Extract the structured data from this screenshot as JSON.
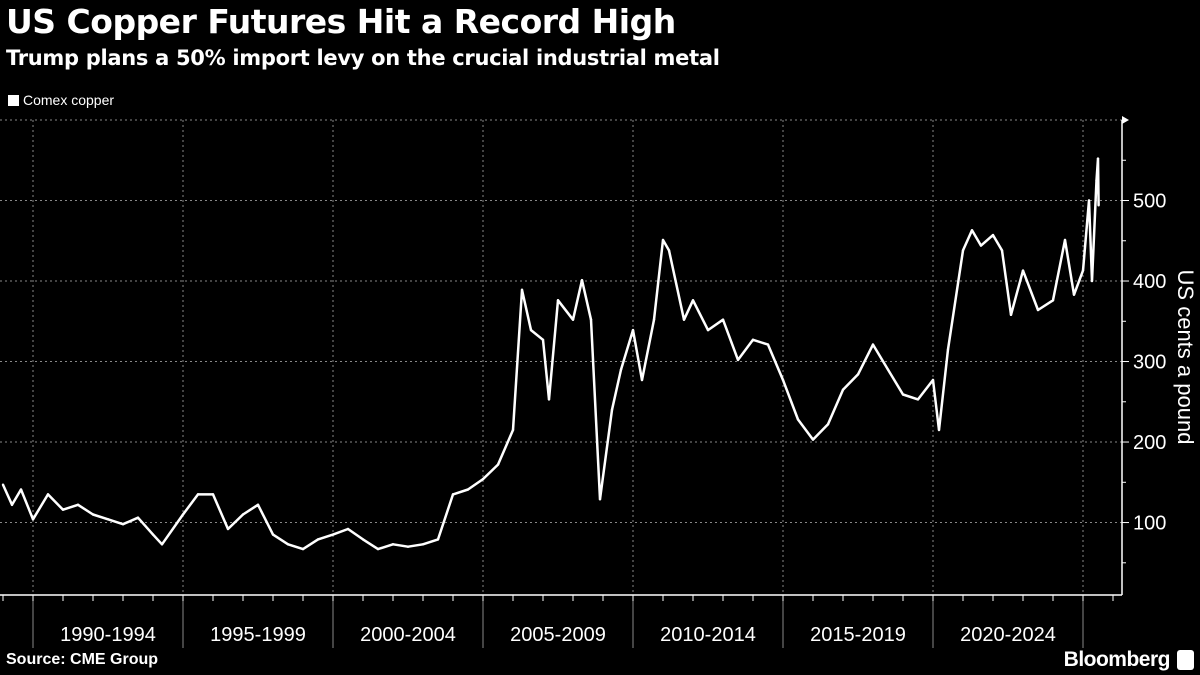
{
  "chart_data": {
    "type": "line",
    "title": "US Copper Futures Hit a Record High",
    "subtitle": "Trump plans a 50% import levy on the crucial industrial metal",
    "legend": [
      "Comex copper"
    ],
    "legend_placement": "top-left",
    "ylabel": "US cents a pound",
    "xlabel": "",
    "ylim": [
      10,
      600
    ],
    "xlim": [
      1988.9,
      2026.3
    ],
    "yticks": [
      100,
      200,
      300,
      400,
      500
    ],
    "ytick_labels": [
      "100",
      "200",
      "300",
      "400",
      "500"
    ],
    "xtick_labels": [
      "1990-1994",
      "1995-1999",
      "2000-2004",
      "2005-2009",
      "2010-2014",
      "2015-2019",
      "2020-2024"
    ],
    "grid": true,
    "series": [
      {
        "name": "Comex copper",
        "x": [
          1989.0,
          1989.3,
          1989.6,
          1990.0,
          1990.5,
          1991.0,
          1991.5,
          1992.0,
          1992.5,
          1993.0,
          1993.5,
          1994.0,
          1994.3,
          1995.0,
          1995.5,
          1996.0,
          1996.5,
          1997.0,
          1997.5,
          1998.0,
          1998.5,
          1999.0,
          1999.5,
          2000.0,
          2000.5,
          2001.0,
          2001.5,
          2002.0,
          2002.5,
          2003.0,
          2003.5,
          2004.0,
          2004.5,
          2005.0,
          2005.5,
          2006.0,
          2006.3,
          2006.6,
          2007.0,
          2007.2,
          2007.5,
          2008.0,
          2008.3,
          2008.6,
          2008.9,
          2009.3,
          2009.6,
          2010.0,
          2010.3,
          2010.7,
          2011.0,
          2011.2,
          2011.7,
          2012.0,
          2012.5,
          2013.0,
          2013.5,
          2014.0,
          2014.5,
          2015.0,
          2015.5,
          2016.0,
          2016.5,
          2017.0,
          2017.5,
          2018.0,
          2018.5,
          2019.0,
          2019.5,
          2020.0,
          2020.2,
          2020.5,
          2021.0,
          2021.3,
          2021.6,
          2022.0,
          2022.3,
          2022.6,
          2023.0,
          2023.5,
          2024.0,
          2024.4,
          2024.7,
          2025.0,
          2025.2,
          2025.3,
          2025.45,
          2025.5,
          2025.52
        ],
        "values": [
          147,
          122,
          141,
          104,
          135,
          116,
          122,
          110,
          104,
          98,
          106,
          85,
          73,
          110,
          135,
          135,
          92,
          110,
          122,
          85,
          73,
          67,
          79,
          85,
          92,
          79,
          67,
          73,
          70,
          73,
          79,
          135,
          141,
          154,
          172,
          215,
          389,
          339,
          327,
          253,
          376,
          352,
          401,
          352,
          129,
          240,
          290,
          339,
          277,
          352,
          451,
          438,
          352,
          376,
          339,
          352,
          302,
          327,
          321,
          277,
          228,
          203,
          222,
          265,
          284,
          321,
          290,
          259,
          253,
          277,
          215,
          315,
          438,
          463,
          444,
          457,
          438,
          358,
          413,
          364,
          376,
          451,
          383,
          413,
          500,
          400,
          525,
          552,
          494
        ]
      }
    ]
  },
  "footer": {
    "source": "Source: CME Group",
    "brand": "Bloomberg"
  }
}
